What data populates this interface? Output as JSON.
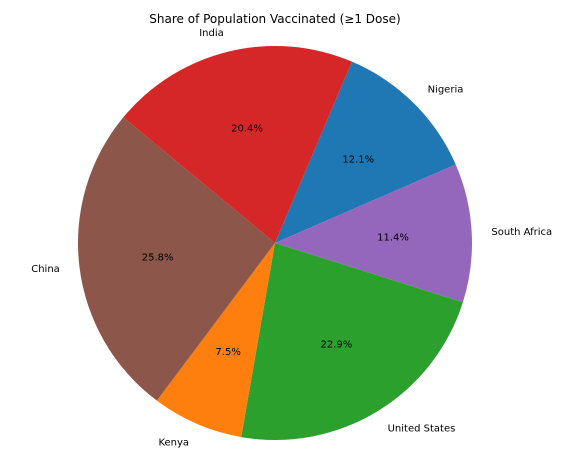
{
  "chart_data": {
    "type": "pie",
    "title": "Share of Population Vaccinated (≥1 Dose)",
    "slices": [
      {
        "label": "Nigeria",
        "value": 12.1,
        "pct_text": "12.1%",
        "color": "#1f77b4"
      },
      {
        "label": "South Africa",
        "value": 11.4,
        "pct_text": "11.4%",
        "color": "#9467bd"
      },
      {
        "label": "United States",
        "value": 22.9,
        "pct_text": "22.9%",
        "color": "#2ca02c"
      },
      {
        "label": "Kenya",
        "value": 7.5,
        "pct_text": "7.5%",
        "color": "#ff7f0e"
      },
      {
        "label": "China",
        "value": 25.8,
        "pct_text": "25.8%",
        "color": "#8c564b"
      },
      {
        "label": "India",
        "value": 20.4,
        "pct_text": "20.4%",
        "color": "#d62728"
      }
    ],
    "start_angle_deg": 67,
    "direction": "clockwise",
    "legend": "none"
  }
}
